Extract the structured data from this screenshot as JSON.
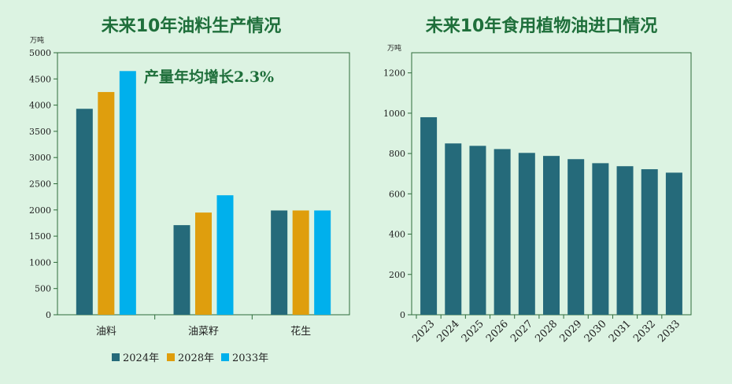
{
  "colors": {
    "background": "#dcf3e2",
    "title": "#1f6f3b",
    "axis": "#2e6b3a",
    "series_2024": "#256a7a",
    "series_2028": "#df9e0d",
    "series_2033": "#00b0ec",
    "import_bar": "#256a7a"
  },
  "chart_data": [
    {
      "type": "bar",
      "title": "未来10年油料生产情况",
      "ylabel": "万吨",
      "xlabel": "",
      "ylim": [
        0,
        5000
      ],
      "yticks": [
        0,
        500,
        1000,
        1500,
        2000,
        2500,
        3000,
        3500,
        4000,
        4500,
        5000
      ],
      "categories": [
        "油料",
        "油菜籽",
        "花生"
      ],
      "series": [
        {
          "name": "2024年",
          "values": [
            3930,
            1710,
            1990
          ]
        },
        {
          "name": "2028年",
          "values": [
            4250,
            1950,
            1990
          ]
        },
        {
          "name": "2033年",
          "values": [
            4650,
            2280,
            1990
          ]
        }
      ],
      "annotation": "产量年均增长2.3%",
      "legend": "bottom"
    },
    {
      "type": "bar",
      "title": "未来10年食用植物油进口情况",
      "ylabel": "万吨",
      "xlabel": "",
      "ylim": [
        0,
        1300
      ],
      "yticks": [
        0,
        200,
        400,
        600,
        800,
        1000,
        1200
      ],
      "categories": [
        "2023",
        "2024",
        "2025",
        "2026",
        "2027",
        "2028",
        "2029",
        "2030",
        "2031",
        "2032",
        "2033"
      ],
      "values": [
        980,
        850,
        838,
        822,
        803,
        788,
        772,
        752,
        737,
        722,
        705
      ]
    }
  ]
}
